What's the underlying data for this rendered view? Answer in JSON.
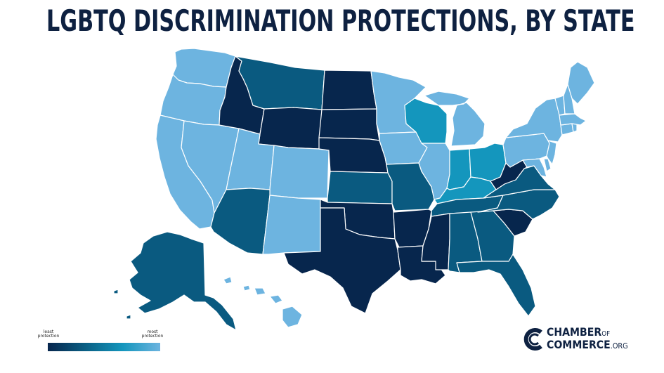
{
  "title": "LGBTQ DISCRIMINATION PROTECTIONS, BY STATE",
  "legend": {
    "least_label": "least protection",
    "most_label": "most protection",
    "colors": [
      "#07264d",
      "#0a5f84",
      "#1496bd",
      "#6db4e0"
    ]
  },
  "logo": {
    "line1": "CHAMBER",
    "of": "OF",
    "line2": "COMMERCE",
    "suffix": ".ORG"
  },
  "palette": {
    "level_1_least": "#07264d",
    "level_2": "#0a5a80",
    "level_3": "#1496bd",
    "level_4_most": "#6db4e0"
  },
  "states": [
    {
      "name": "Washington",
      "level": 4
    },
    {
      "name": "Oregon",
      "level": 4
    },
    {
      "name": "California",
      "level": 4
    },
    {
      "name": "Nevada",
      "level": 4
    },
    {
      "name": "Idaho",
      "level": 1
    },
    {
      "name": "Montana",
      "level": 2
    },
    {
      "name": "Wyoming",
      "level": 1
    },
    {
      "name": "Utah",
      "level": 4
    },
    {
      "name": "Colorado",
      "level": 4
    },
    {
      "name": "Arizona",
      "level": 2
    },
    {
      "name": "New Mexico",
      "level": 4
    },
    {
      "name": "North Dakota",
      "level": 1
    },
    {
      "name": "South Dakota",
      "level": 1
    },
    {
      "name": "Nebraska",
      "level": 1
    },
    {
      "name": "Kansas",
      "level": 2
    },
    {
      "name": "Oklahoma",
      "level": 1
    },
    {
      "name": "Texas",
      "level": 1
    },
    {
      "name": "Minnesota",
      "level": 4
    },
    {
      "name": "Iowa",
      "level": 4
    },
    {
      "name": "Missouri",
      "level": 2
    },
    {
      "name": "Arkansas",
      "level": 1
    },
    {
      "name": "Louisiana",
      "level": 1
    },
    {
      "name": "Wisconsin",
      "level": 3
    },
    {
      "name": "Illinois",
      "level": 4
    },
    {
      "name": "Michigan",
      "level": 4
    },
    {
      "name": "Indiana",
      "level": 3
    },
    {
      "name": "Ohio",
      "level": 3
    },
    {
      "name": "Kentucky",
      "level": 3
    },
    {
      "name": "Tennessee",
      "level": 2
    },
    {
      "name": "Mississippi",
      "level": 1
    },
    {
      "name": "Alabama",
      "level": 2
    },
    {
      "name": "Georgia",
      "level": 2
    },
    {
      "name": "Florida",
      "level": 2
    },
    {
      "name": "South Carolina",
      "level": 1
    },
    {
      "name": "North Carolina",
      "level": 2
    },
    {
      "name": "Virginia",
      "level": 2
    },
    {
      "name": "West Virginia",
      "level": 1
    },
    {
      "name": "Maryland",
      "level": 4
    },
    {
      "name": "Delaware",
      "level": 4
    },
    {
      "name": "Pennsylvania",
      "level": 4
    },
    {
      "name": "New Jersey",
      "level": 4
    },
    {
      "name": "New York",
      "level": 4
    },
    {
      "name": "Connecticut",
      "level": 4
    },
    {
      "name": "Rhode Island",
      "level": 4
    },
    {
      "name": "Massachusetts",
      "level": 4
    },
    {
      "name": "Vermont",
      "level": 4
    },
    {
      "name": "New Hampshire",
      "level": 4
    },
    {
      "name": "Maine",
      "level": 4
    },
    {
      "name": "Alaska",
      "level": 2
    },
    {
      "name": "Hawaii",
      "level": 4
    }
  ]
}
